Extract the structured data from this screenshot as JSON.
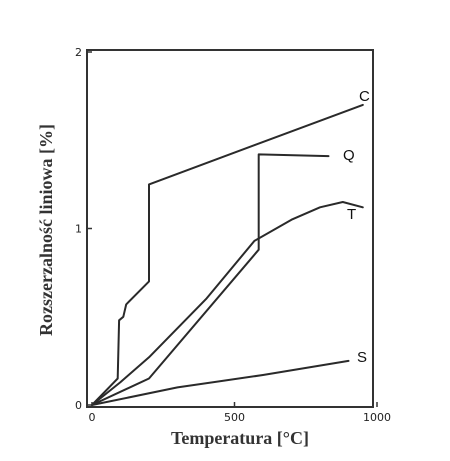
{
  "chart_data": {
    "type": "line",
    "xlabel": "Temperatura [°C]",
    "ylabel": "Rozszerzalność liniowa [%]",
    "xlim": [
      0,
      1000
    ],
    "ylim": [
      0,
      2
    ],
    "x_ticks": [
      {
        "value": 0,
        "label": "0"
      },
      {
        "value": 500,
        "label": "500"
      },
      {
        "value": 1000,
        "label": "1000"
      }
    ],
    "y_ticks": [
      {
        "value": 0,
        "label": "0"
      },
      {
        "value": 1,
        "label": "1"
      },
      {
        "value": 2,
        "label": "2"
      }
    ],
    "grid": false,
    "series": [
      {
        "name": "C",
        "x": [
          0,
          90,
          95,
          110,
          120,
          200,
          200,
          950
        ],
        "y": [
          0,
          0.15,
          0.48,
          0.5,
          0.57,
          0.7,
          1.25,
          1.7
        ]
      },
      {
        "name": "Q",
        "x": [
          0,
          200,
          200,
          585,
          585,
          830
        ],
        "y": [
          0,
          0.15,
          0.15,
          0.88,
          1.42,
          1.41
        ]
      },
      {
        "name": "T",
        "x": [
          0,
          100,
          200,
          400,
          570,
          700,
          800,
          880,
          950
        ],
        "y": [
          0,
          0.13,
          0.27,
          0.6,
          0.93,
          1.05,
          1.12,
          1.15,
          1.12
        ]
      },
      {
        "name": "S",
        "x": [
          0,
          300,
          600,
          900
        ],
        "y": [
          0,
          0.1,
          0.17,
          0.25
        ]
      }
    ],
    "series_label_text": [
      "C",
      "Q",
      "T",
      "S"
    ]
  }
}
